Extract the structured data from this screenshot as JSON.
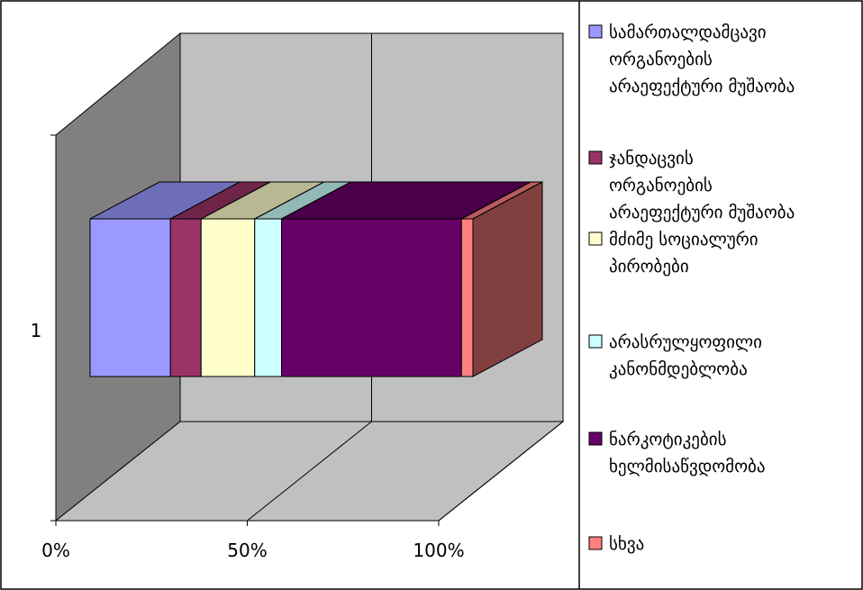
{
  "chart_data": {
    "type": "bar",
    "orientation": "horizontal",
    "stacked": "percent",
    "three_d": true,
    "categories": [
      "1"
    ],
    "series": [
      {
        "name": "სამართალდამცავი ორგანოების არაეფექტური მუშაობა",
        "values": [
          21
        ],
        "color": "#9999FF"
      },
      {
        "name": "ჯანდაცვის ორგანოების არაეფექტური მუშაობა",
        "values": [
          8
        ],
        "color": "#993366"
      },
      {
        "name": "მძიმე სოციალური პირობები",
        "values": [
          14
        ],
        "color": "#FFFFCC"
      },
      {
        "name": "არასრულყოფილი კანონმდებლობა",
        "values": [
          7
        ],
        "color": "#CCFFFF"
      },
      {
        "name": "ნარკოტიკების ხელმისაწვდომობა",
        "values": [
          47
        ],
        "color": "#660066"
      },
      {
        "name": "სხვა",
        "values": [
          3
        ],
        "color": "#FF8080"
      }
    ],
    "x_ticks": [
      "0%",
      "50%",
      "100%"
    ],
    "xlim": [
      0,
      100
    ],
    "grid": true,
    "legend_position": "right"
  }
}
